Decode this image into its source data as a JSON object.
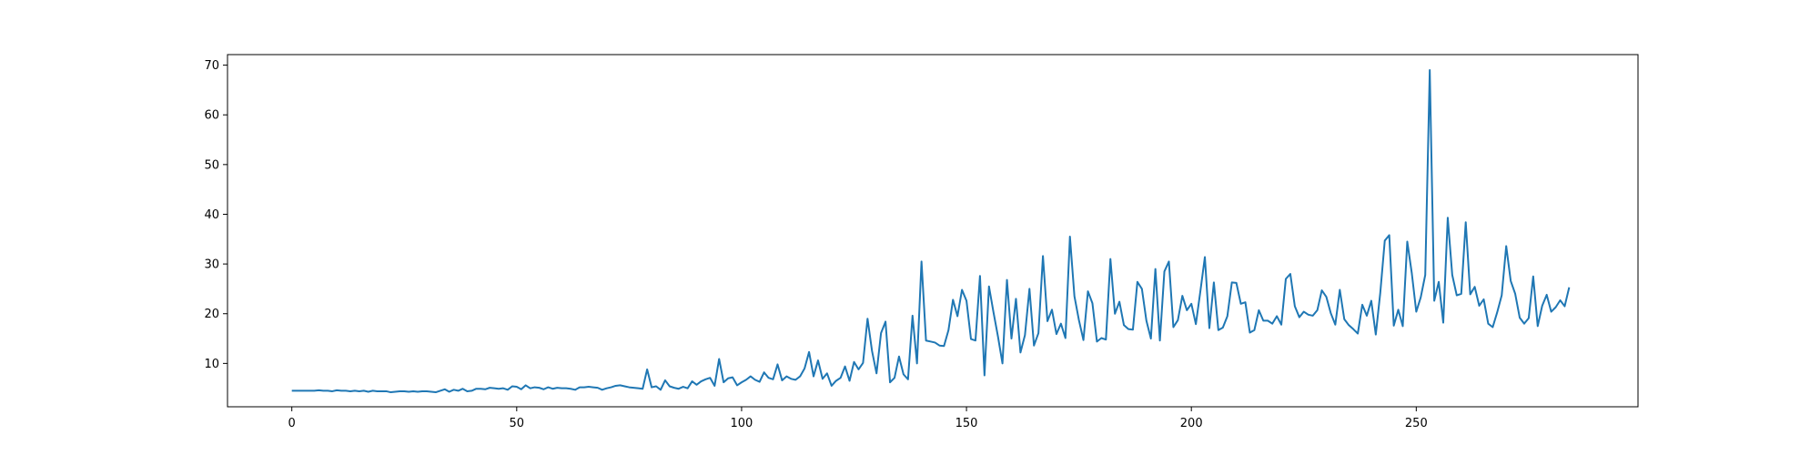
{
  "chart_data": {
    "type": "line",
    "title": "",
    "xlabel": "",
    "ylabel": "",
    "xlim": [
      -14.3,
      299.3
    ],
    "ylim": [
      1.28,
      72.12
    ],
    "grid": false,
    "legend": "none",
    "x_ticks": [
      0,
      50,
      100,
      150,
      200,
      250
    ],
    "y_ticks": [
      10,
      20,
      30,
      40,
      50,
      60,
      70
    ],
    "series": [
      {
        "color": "#1f77b4",
        "values": [
          4.5,
          4.5,
          4.5,
          4.5,
          4.5,
          4.5,
          4.6,
          4.5,
          4.5,
          4.4,
          4.6,
          4.5,
          4.5,
          4.4,
          4.5,
          4.4,
          4.5,
          4.3,
          4.5,
          4.4,
          4.4,
          4.4,
          4.2,
          4.3,
          4.4,
          4.4,
          4.3,
          4.4,
          4.3,
          4.4,
          4.4,
          4.3,
          4.2,
          4.5,
          4.8,
          4.3,
          4.7,
          4.5,
          4.9,
          4.4,
          4.5,
          4.9,
          4.9,
          4.8,
          5.1,
          5.0,
          4.9,
          5.0,
          4.7,
          5.4,
          5.3,
          4.8,
          5.6,
          5.0,
          5.2,
          5.1,
          4.8,
          5.2,
          4.9,
          5.1,
          5.0,
          5.0,
          4.9,
          4.7,
          5.2,
          5.2,
          5.3,
          5.2,
          5.1,
          4.7,
          5.0,
          5.2,
          5.5,
          5.6,
          5.4,
          5.2,
          5.1,
          5.0,
          4.9,
          8.8,
          5.2,
          5.4,
          4.7,
          6.6,
          5.4,
          5.1,
          4.9,
          5.3,
          5.0,
          6.4,
          5.7,
          6.4,
          6.8,
          7.1,
          5.5,
          10.9,
          6.2,
          7.0,
          7.2,
          5.6,
          6.2,
          6.7,
          7.4,
          6.7,
          6.3,
          8.2,
          7.1,
          6.8,
          9.8,
          6.6,
          7.4,
          6.9,
          6.7,
          7.4,
          9.0,
          12.3,
          7.4,
          10.6,
          6.9,
          8.0,
          5.5,
          6.5,
          7.1,
          9.4,
          6.5,
          10.3,
          8.8,
          10.1,
          19.0,
          12.5,
          8.0,
          16.1,
          18.4,
          6.2,
          7.1,
          11.4,
          7.8,
          6.8,
          19.6,
          10.0,
          30.5,
          14.6,
          14.4,
          14.2,
          13.6,
          13.5,
          16.7,
          22.8,
          19.5,
          24.8,
          22.6,
          14.9,
          14.6,
          27.6,
          7.6,
          25.5,
          20.3,
          15.4,
          10.0,
          26.8,
          15.0,
          23.0,
          12.2,
          15.7,
          25.0,
          13.6,
          16.1,
          31.6,
          18.5,
          20.8,
          15.9,
          18.0,
          15.1,
          35.5,
          23.5,
          18.7,
          14.7,
          24.5,
          22.1,
          14.4,
          15.1,
          14.8,
          31.0,
          20.0,
          22.4,
          17.7,
          16.9,
          16.8,
          26.4,
          25.0,
          18.6,
          15.0,
          29.0,
          14.6,
          28.5,
          30.5,
          17.3,
          18.7,
          23.6,
          20.7,
          22.0,
          17.9,
          24.5,
          31.4,
          17.1,
          26.3,
          16.7,
          17.2,
          19.5,
          26.3,
          26.2,
          22.0,
          22.3,
          16.2,
          16.7,
          20.7,
          18.6,
          18.6,
          18.0,
          19.5,
          17.8,
          27.0,
          28.0,
          21.5,
          19.3,
          20.4,
          19.8,
          19.6,
          20.7,
          24.7,
          23.4,
          20.1,
          17.8,
          24.8,
          18.9,
          17.7,
          16.9,
          16.0,
          21.8,
          19.6,
          22.6,
          15.8,
          24.2,
          34.7,
          35.8,
          17.6,
          20.8,
          17.5,
          34.5,
          28.2,
          20.4,
          23.3,
          27.8,
          69.0,
          22.6,
          26.4,
          18.2,
          39.3,
          27.8,
          23.7,
          24.0,
          38.4,
          23.9,
          25.4,
          21.6,
          22.9,
          18.0,
          17.3,
          20.3,
          23.7,
          33.6,
          26.6,
          24.0,
          19.2,
          18.0,
          19.1,
          27.5,
          17.5,
          21.6,
          23.8,
          20.4,
          21.3,
          22.7,
          21.5,
          25.3
        ]
      }
    ]
  }
}
